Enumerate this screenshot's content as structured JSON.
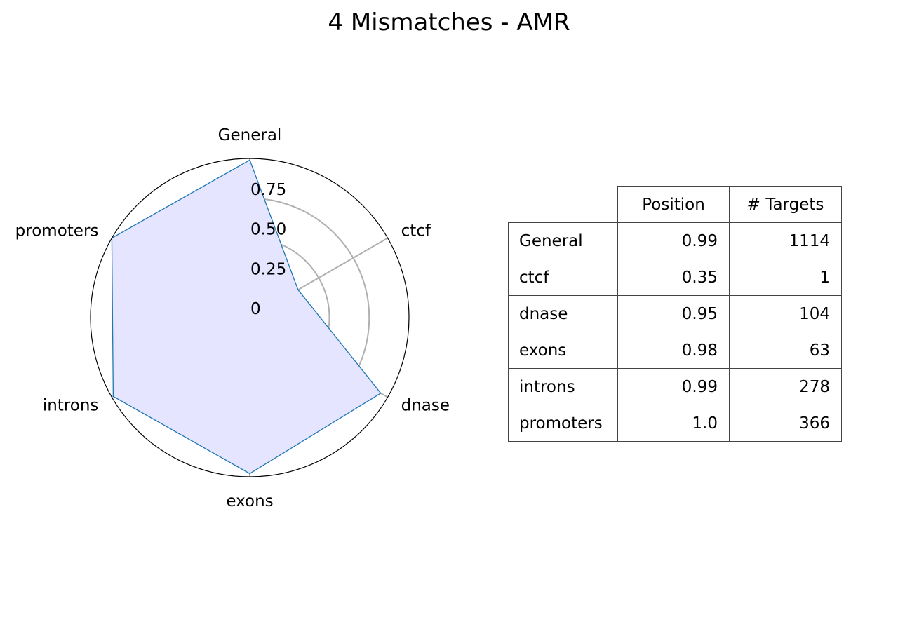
{
  "chart_data": {
    "type": "radar",
    "title": "4 Mismatches - AMR",
    "axes": [
      "General",
      "ctcf",
      "dnase",
      "exons",
      "introns",
      "promoters"
    ],
    "values": [
      0.99,
      0.35,
      0.95,
      0.98,
      0.99,
      1.0
    ],
    "rlim": [
      0,
      1
    ],
    "radial_ticks": [
      {
        "value": 0,
        "label": "0"
      },
      {
        "value": 0.25,
        "label": "0.25"
      },
      {
        "value": 0.5,
        "label": "0.50"
      },
      {
        "value": 0.75,
        "label": "0.75"
      }
    ],
    "line_color": "#1f77b4",
    "fill_color": "#e5e5ff",
    "grid_color": "#b0b0b0",
    "grid": true
  },
  "table": {
    "headers": [
      "Position",
      "# Targets"
    ],
    "rows": [
      {
        "name": "General",
        "position": "0.99",
        "targets": "1114"
      },
      {
        "name": "ctcf",
        "position": "0.35",
        "targets": "1"
      },
      {
        "name": "dnase",
        "position": "0.95",
        "targets": "104"
      },
      {
        "name": "exons",
        "position": "0.98",
        "targets": "63"
      },
      {
        "name": "introns",
        "position": "0.99",
        "targets": "278"
      },
      {
        "name": "promoters",
        "position": "1.0",
        "targets": "366"
      }
    ]
  }
}
